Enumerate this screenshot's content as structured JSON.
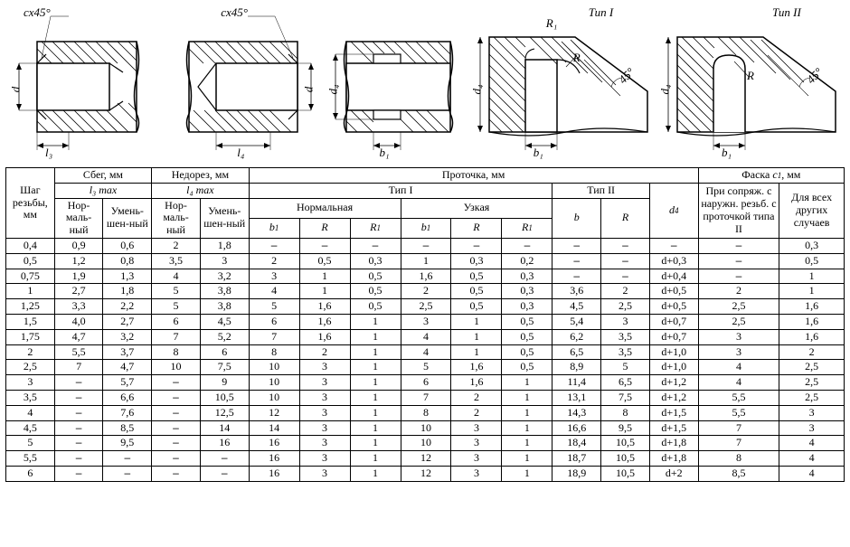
{
  "figures": {
    "chamfer_left": "cx45°",
    "chamfer_mid": "cx45°",
    "r1": "R₁",
    "r": "R",
    "type1": "Тип I",
    "type2": "Тип II",
    "d": "d",
    "d4": "d₄",
    "l3": "l₃",
    "l4": "l₄",
    "b1": "b₁",
    "angle": "45°"
  },
  "headers": {
    "pitch": "Шаг резьбы, мм",
    "sbeg": "Сбег, мм",
    "nedorez": "Недорез, мм",
    "protochka": "Проточка, мм",
    "faska": "Фаска c₁, мм",
    "l3max": "l₃ max",
    "l4max": "l₄ max",
    "tip1": "Тип I",
    "tip2": "Тип II",
    "normal": "Нормальная",
    "uzkaya": "Узкая",
    "b1": "b₁",
    "R": "R",
    "R1": "R₁",
    "b": "b",
    "d4": "d₄",
    "norm": "Нор-маль-ный",
    "umen": "Умень-шен-ный",
    "faska_col1": "При сопряж. с наружн. резьб. с проточкой типа II",
    "faska_col2": "Для всех других случаев"
  },
  "rows": [
    {
      "pitch": "0,4",
      "l3n": "0,9",
      "l3u": "0,6",
      "l4n": "2",
      "l4u": "1,8",
      "nb1": "–",
      "nR": "–",
      "nR1": "–",
      "ub1": "–",
      "uR": "–",
      "uR1": "–",
      "t2b": "–",
      "t2R": "–",
      "d4": "–",
      "f1": "–",
      "f2": "0,3"
    },
    {
      "pitch": "0,5",
      "l3n": "1,2",
      "l3u": "0,8",
      "l4n": "3,5",
      "l4u": "3",
      "nb1": "2",
      "nR": "0,5",
      "nR1": "0,3",
      "ub1": "1",
      "uR": "0,3",
      "uR1": "0,2",
      "t2b": "–",
      "t2R": "–",
      "d4": "d+0,3",
      "f1": "–",
      "f2": "0,5"
    },
    {
      "pitch": "0,75",
      "l3n": "1,9",
      "l3u": "1,3",
      "l4n": "4",
      "l4u": "3,2",
      "nb1": "3",
      "nR": "1",
      "nR1": "0,5",
      "ub1": "1,6",
      "uR": "0,5",
      "uR1": "0,3",
      "t2b": "–",
      "t2R": "–",
      "d4": "d+0,4",
      "f1": "–",
      "f2": "1"
    },
    {
      "pitch": "1",
      "l3n": "2,7",
      "l3u": "1,8",
      "l4n": "5",
      "l4u": "3,8",
      "nb1": "4",
      "nR": "1",
      "nR1": "0,5",
      "ub1": "2",
      "uR": "0,5",
      "uR1": "0,3",
      "t2b": "3,6",
      "t2R": "2",
      "d4": "d+0,5",
      "f1": "2",
      "f2": "1"
    },
    {
      "pitch": "1,25",
      "l3n": "3,3",
      "l3u": "2,2",
      "l4n": "5",
      "l4u": "3,8",
      "nb1": "5",
      "nR": "1,6",
      "nR1": "0,5",
      "ub1": "2,5",
      "uR": "0,5",
      "uR1": "0,3",
      "t2b": "4,5",
      "t2R": "2,5",
      "d4": "d+0,5",
      "f1": "2,5",
      "f2": "1,6"
    },
    {
      "pitch": "1,5",
      "l3n": "4,0",
      "l3u": "2,7",
      "l4n": "6",
      "l4u": "4,5",
      "nb1": "6",
      "nR": "1,6",
      "nR1": "1",
      "ub1": "3",
      "uR": "1",
      "uR1": "0,5",
      "t2b": "5,4",
      "t2R": "3",
      "d4": "d+0,7",
      "f1": "2,5",
      "f2": "1,6"
    },
    {
      "pitch": "1,75",
      "l3n": "4,7",
      "l3u": "3,2",
      "l4n": "7",
      "l4u": "5,2",
      "nb1": "7",
      "nR": "1,6",
      "nR1": "1",
      "ub1": "4",
      "uR": "1",
      "uR1": "0,5",
      "t2b": "6,2",
      "t2R": "3,5",
      "d4": "d+0,7",
      "f1": "3",
      "f2": "1,6"
    },
    {
      "pitch": "2",
      "l3n": "5,5",
      "l3u": "3,7",
      "l4n": "8",
      "l4u": "6",
      "nb1": "8",
      "nR": "2",
      "nR1": "1",
      "ub1": "4",
      "uR": "1",
      "uR1": "0,5",
      "t2b": "6,5",
      "t2R": "3,5",
      "d4": "d+1,0",
      "f1": "3",
      "f2": "2"
    },
    {
      "pitch": "2,5",
      "l3n": "7",
      "l3u": "4,7",
      "l4n": "10",
      "l4u": "7,5",
      "nb1": "10",
      "nR": "3",
      "nR1": "1",
      "ub1": "5",
      "uR": "1,6",
      "uR1": "0,5",
      "t2b": "8,9",
      "t2R": "5",
      "d4": "d+1,0",
      "f1": "4",
      "f2": "2,5"
    },
    {
      "pitch": "3",
      "l3n": "–",
      "l3u": "5,7",
      "l4n": "–",
      "l4u": "9",
      "nb1": "10",
      "nR": "3",
      "nR1": "1",
      "ub1": "6",
      "uR": "1,6",
      "uR1": "1",
      "t2b": "11,4",
      "t2R": "6,5",
      "d4": "d+1,2",
      "f1": "4",
      "f2": "2,5"
    },
    {
      "pitch": "3,5",
      "l3n": "–",
      "l3u": "6,6",
      "l4n": "–",
      "l4u": "10,5",
      "nb1": "10",
      "nR": "3",
      "nR1": "1",
      "ub1": "7",
      "uR": "2",
      "uR1": "1",
      "t2b": "13,1",
      "t2R": "7,5",
      "d4": "d+1,2",
      "f1": "5,5",
      "f2": "2,5"
    },
    {
      "pitch": "4",
      "l3n": "–",
      "l3u": "7,6",
      "l4n": "–",
      "l4u": "12,5",
      "nb1": "12",
      "nR": "3",
      "nR1": "1",
      "ub1": "8",
      "uR": "2",
      "uR1": "1",
      "t2b": "14,3",
      "t2R": "8",
      "d4": "d+1,5",
      "f1": "5,5",
      "f2": "3"
    },
    {
      "pitch": "4,5",
      "l3n": "–",
      "l3u": "8,5",
      "l4n": "–",
      "l4u": "14",
      "nb1": "14",
      "nR": "3",
      "nR1": "1",
      "ub1": "10",
      "uR": "3",
      "uR1": "1",
      "t2b": "16,6",
      "t2R": "9,5",
      "d4": "d+1,5",
      "f1": "7",
      "f2": "3"
    },
    {
      "pitch": "5",
      "l3n": "–",
      "l3u": "9,5",
      "l4n": "–",
      "l4u": "16",
      "nb1": "16",
      "nR": "3",
      "nR1": "1",
      "ub1": "10",
      "uR": "3",
      "uR1": "1",
      "t2b": "18,4",
      "t2R": "10,5",
      "d4": "d+1,8",
      "f1": "7",
      "f2": "4"
    },
    {
      "pitch": "5,5",
      "l3n": "–",
      "l3u": "–",
      "l4n": "–",
      "l4u": "–",
      "nb1": "16",
      "nR": "3",
      "nR1": "1",
      "ub1": "12",
      "uR": "3",
      "uR1": "1",
      "t2b": "18,7",
      "t2R": "10,5",
      "d4": "d+1,8",
      "f1": "8",
      "f2": "4"
    },
    {
      "pitch": "6",
      "l3n": "–",
      "l3u": "–",
      "l4n": "–",
      "l4u": "–",
      "nb1": "16",
      "nR": "3",
      "nR1": "1",
      "ub1": "12",
      "uR": "3",
      "uR1": "1",
      "t2b": "18,9",
      "t2R": "10,5",
      "d4": "d+2",
      "f1": "8,5",
      "f2": "4"
    }
  ]
}
